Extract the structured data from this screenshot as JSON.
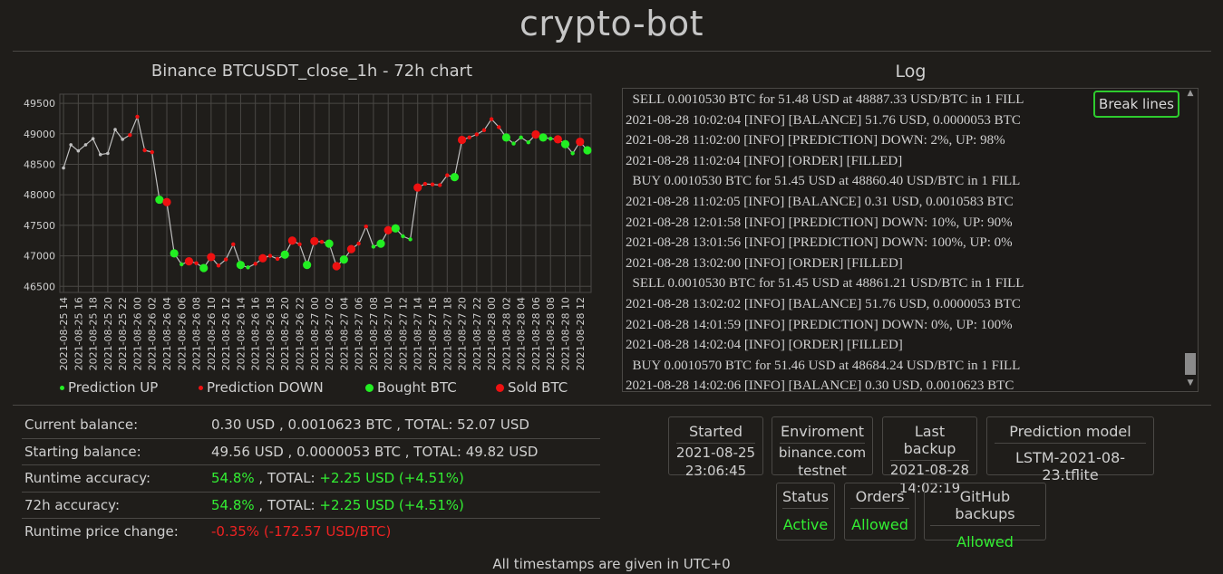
{
  "app": {
    "title": "crypto-bot",
    "footer": "All timestamps are given in UTC+0"
  },
  "chart_data": {
    "type": "line",
    "title": "Binance BTCUSDT_close_1h - 72h chart",
    "xlabel": "",
    "ylabel": "",
    "ylim": [
      46400,
      49650
    ],
    "yticks": [
      46500,
      47000,
      47500,
      48000,
      48500,
      49000,
      49500
    ],
    "grid": true,
    "legend_position": "bottom",
    "x": [
      "2021-08-25 14",
      "2021-08-25 15",
      "2021-08-25 16",
      "2021-08-25 17",
      "2021-08-25 18",
      "2021-08-25 19",
      "2021-08-25 20",
      "2021-08-25 21",
      "2021-08-25 22",
      "2021-08-25 23",
      "2021-08-26 00",
      "2021-08-26 01",
      "2021-08-26 02",
      "2021-08-26 03",
      "2021-08-26 04",
      "2021-08-26 05",
      "2021-08-26 06",
      "2021-08-26 07",
      "2021-08-26 08",
      "2021-08-26 09",
      "2021-08-26 10",
      "2021-08-26 11",
      "2021-08-26 12",
      "2021-08-26 13",
      "2021-08-26 14",
      "2021-08-26 15",
      "2021-08-26 16",
      "2021-08-26 17",
      "2021-08-26 18",
      "2021-08-26 19",
      "2021-08-26 20",
      "2021-08-26 21",
      "2021-08-26 22",
      "2021-08-26 23",
      "2021-08-27 00",
      "2021-08-27 01",
      "2021-08-27 02",
      "2021-08-27 03",
      "2021-08-27 04",
      "2021-08-27 05",
      "2021-08-27 06",
      "2021-08-27 07",
      "2021-08-27 08",
      "2021-08-27 09",
      "2021-08-27 10",
      "2021-08-27 11",
      "2021-08-27 12",
      "2021-08-27 13",
      "2021-08-27 14",
      "2021-08-27 15",
      "2021-08-27 16",
      "2021-08-27 17",
      "2021-08-27 18",
      "2021-08-27 19",
      "2021-08-27 20",
      "2021-08-27 21",
      "2021-08-27 22",
      "2021-08-27 23",
      "2021-08-28 00",
      "2021-08-28 01",
      "2021-08-28 02",
      "2021-08-28 03",
      "2021-08-28 04",
      "2021-08-28 05",
      "2021-08-28 06",
      "2021-08-28 07",
      "2021-08-28 08",
      "2021-08-28 09",
      "2021-08-28 10",
      "2021-08-28 11",
      "2021-08-28 12",
      "2021-08-28 13"
    ],
    "xtick_labels": [
      "2021-08-25 14",
      "2021-08-25 16",
      "2021-08-25 18",
      "2021-08-25 20",
      "2021-08-25 22",
      "2021-08-26 00",
      "2021-08-26 02",
      "2021-08-26 04",
      "2021-08-26 06",
      "2021-08-26 08",
      "2021-08-26 10",
      "2021-08-26 12",
      "2021-08-26 14",
      "2021-08-26 16",
      "2021-08-26 18",
      "2021-08-26 20",
      "2021-08-26 22",
      "2021-08-27 00",
      "2021-08-27 02",
      "2021-08-27 04",
      "2021-08-27 06",
      "2021-08-27 08",
      "2021-08-27 10",
      "2021-08-27 12",
      "2021-08-27 14",
      "2021-08-27 16",
      "2021-08-27 18",
      "2021-08-27 20",
      "2021-08-27 22",
      "2021-08-28 00",
      "2021-08-28 02",
      "2021-08-28 04",
      "2021-08-28 06",
      "2021-08-28 08",
      "2021-08-28 10",
      "2021-08-28 12"
    ],
    "values": [
      48440,
      48820,
      48720,
      48820,
      48920,
      48660,
      48680,
      49070,
      48910,
      48980,
      49280,
      48730,
      48700,
      47920,
      47880,
      47040,
      46860,
      46910,
      46880,
      46800,
      46980,
      46840,
      46940,
      47190,
      46850,
      46810,
      46870,
      46960,
      47000,
      46950,
      47020,
      47250,
      47190,
      46850,
      47240,
      47230,
      47200,
      46830,
      46940,
      47110,
      47200,
      47480,
      47150,
      47200,
      47420,
      47450,
      47320,
      47270,
      48120,
      48180,
      48170,
      48160,
      48320,
      48290,
      48900,
      48940,
      48990,
      49060,
      49240,
      49110,
      48940,
      48840,
      48940,
      48860,
      48990,
      48940,
      48920,
      48910,
      48830,
      48680,
      48870,
      48730
    ],
    "markers": [
      {
        "i": 0,
        "type": "none"
      },
      {
        "i": 1,
        "type": "none"
      },
      {
        "i": 2,
        "type": "none"
      },
      {
        "i": 3,
        "type": "none"
      },
      {
        "i": 4,
        "type": "none"
      },
      {
        "i": 5,
        "type": "none"
      },
      {
        "i": 6,
        "type": "none"
      },
      {
        "i": 7,
        "type": "none"
      },
      {
        "i": 8,
        "type": "none"
      },
      {
        "i": 9,
        "type": "pred_down"
      },
      {
        "i": 10,
        "type": "pred_down"
      },
      {
        "i": 11,
        "type": "pred_down"
      },
      {
        "i": 12,
        "type": "pred_down"
      },
      {
        "i": 13,
        "type": "bought"
      },
      {
        "i": 14,
        "type": "sold"
      },
      {
        "i": 15,
        "type": "bought"
      },
      {
        "i": 16,
        "type": "pred_up"
      },
      {
        "i": 17,
        "type": "sold"
      },
      {
        "i": 18,
        "type": "pred_down"
      },
      {
        "i": 19,
        "type": "bought"
      },
      {
        "i": 20,
        "type": "sold"
      },
      {
        "i": 21,
        "type": "pred_down"
      },
      {
        "i": 22,
        "type": "pred_down"
      },
      {
        "i": 23,
        "type": "pred_down"
      },
      {
        "i": 24,
        "type": "bought"
      },
      {
        "i": 25,
        "type": "pred_up"
      },
      {
        "i": 26,
        "type": "pred_down"
      },
      {
        "i": 27,
        "type": "sold"
      },
      {
        "i": 28,
        "type": "pred_down"
      },
      {
        "i": 29,
        "type": "pred_down"
      },
      {
        "i": 30,
        "type": "bought"
      },
      {
        "i": 31,
        "type": "sold"
      },
      {
        "i": 32,
        "type": "pred_down"
      },
      {
        "i": 33,
        "type": "bought"
      },
      {
        "i": 34,
        "type": "sold"
      },
      {
        "i": 35,
        "type": "pred_down"
      },
      {
        "i": 36,
        "type": "bought"
      },
      {
        "i": 37,
        "type": "sold"
      },
      {
        "i": 38,
        "type": "bought"
      },
      {
        "i": 39,
        "type": "sold"
      },
      {
        "i": 40,
        "type": "pred_down"
      },
      {
        "i": 41,
        "type": "pred_down"
      },
      {
        "i": 42,
        "type": "pred_up"
      },
      {
        "i": 43,
        "type": "bought"
      },
      {
        "i": 44,
        "type": "sold"
      },
      {
        "i": 45,
        "type": "bought"
      },
      {
        "i": 46,
        "type": "pred_up"
      },
      {
        "i": 47,
        "type": "pred_up"
      },
      {
        "i": 48,
        "type": "sold"
      },
      {
        "i": 49,
        "type": "pred_down"
      },
      {
        "i": 50,
        "type": "pred_down"
      },
      {
        "i": 51,
        "type": "pred_down"
      },
      {
        "i": 52,
        "type": "pred_down"
      },
      {
        "i": 53,
        "type": "bought"
      },
      {
        "i": 54,
        "type": "sold"
      },
      {
        "i": 55,
        "type": "pred_down"
      },
      {
        "i": 56,
        "type": "pred_down"
      },
      {
        "i": 57,
        "type": "pred_down"
      },
      {
        "i": 58,
        "type": "pred_down"
      },
      {
        "i": 59,
        "type": "pred_down"
      },
      {
        "i": 60,
        "type": "bought"
      },
      {
        "i": 61,
        "type": "pred_up"
      },
      {
        "i": 62,
        "type": "pred_up"
      },
      {
        "i": 63,
        "type": "pred_up"
      },
      {
        "i": 64,
        "type": "sold"
      },
      {
        "i": 65,
        "type": "bought"
      },
      {
        "i": 66,
        "type": "pred_up"
      },
      {
        "i": 67,
        "type": "sold"
      },
      {
        "i": 68,
        "type": "bought"
      },
      {
        "i": 69,
        "type": "pred_up"
      },
      {
        "i": 70,
        "type": "sold"
      },
      {
        "i": 71,
        "type": "bought"
      }
    ],
    "legend": [
      {
        "label": "Prediction UP",
        "type": "pred_up",
        "color": "#22ee22"
      },
      {
        "label": "Prediction DOWN",
        "type": "pred_down",
        "color": "#ee1111"
      },
      {
        "label": "Bought BTC",
        "type": "bought",
        "color": "#22ee22"
      },
      {
        "label": "Sold BTC",
        "type": "sold",
        "color": "#ee1111"
      }
    ],
    "line_color": "#bfbfbf"
  },
  "log": {
    "title": "Log",
    "break_lines_label": "Break lines",
    "lines": [
      "  SELL 0.0010530 BTC for 51.48 USD at 48887.33 USD/BTC in 1 FILL",
      "2021-08-28 10:02:04 [INFO] [BALANCE] 51.76 USD, 0.0000053 BTC",
      "2021-08-28 11:02:00 [INFO] [PREDICTION] DOWN: 2%, UP: 98%",
      "2021-08-28 11:02:04 [INFO] [ORDER] [FILLED]",
      "  BUY 0.0010530 BTC for 51.45 USD at 48860.40 USD/BTC in 1 FILL",
      "2021-08-28 11:02:05 [INFO] [BALANCE] 0.31 USD, 0.0010583 BTC",
      "2021-08-28 12:01:58 [INFO] [PREDICTION] DOWN: 10%, UP: 90%",
      "2021-08-28 13:01:56 [INFO] [PREDICTION] DOWN: 100%, UP: 0%",
      "2021-08-28 13:02:00 [INFO] [ORDER] [FILLED]",
      "  SELL 0.0010530 BTC for 51.45 USD at 48861.21 USD/BTC in 1 FILL",
      "2021-08-28 13:02:02 [INFO] [BALANCE] 51.76 USD, 0.0000053 BTC",
      "2021-08-28 14:01:59 [INFO] [PREDICTION] DOWN: 0%, UP: 100%",
      "2021-08-28 14:02:04 [INFO] [ORDER] [FILLED]",
      "  BUY 0.0010570 BTC for 51.46 USD at 48684.24 USD/BTC in 1 FILL",
      "2021-08-28 14:02:06 [INFO] [BALANCE] 0.30 USD, 0.0010623 BTC"
    ],
    "scrollbar": {
      "up_icon": "▲",
      "down_icon": "▼"
    }
  },
  "stats": {
    "current_balance": {
      "label": "Current balance:",
      "value": "0.30 USD , 0.0010623 BTC , TOTAL: 52.07 USD"
    },
    "starting_balance": {
      "label": "Starting balance:",
      "value": "49.56 USD , 0.0000053 BTC , TOTAL: 49.82 USD"
    },
    "runtime_accuracy": {
      "label": "Runtime accuracy:",
      "pct": "54.8%",
      "mid": " , TOTAL: ",
      "total": "+2.25 USD (+4.51%)"
    },
    "h72_accuracy": {
      "label": "72h accuracy:",
      "pct": "54.8%",
      "mid": " , TOTAL: ",
      "total": "+2.25 USD (+4.51%)"
    },
    "runtime_price_change": {
      "label": "Runtime price change:",
      "value": "-0.35% (-172.57 USD/BTC)"
    }
  },
  "cards": {
    "started": {
      "head": "Started",
      "line1": "2021-08-25",
      "line2": "23:06:45"
    },
    "environment": {
      "head": "Enviroment",
      "line1": "binance.com",
      "line2": "testnet"
    },
    "last_backup": {
      "head": "Last backup",
      "line1": "2021-08-28",
      "line2": "14:02:19"
    },
    "prediction_model": {
      "head": "Prediction model",
      "line1": "LSTM-2021-08-23.tflite"
    },
    "status": {
      "head": "Status",
      "value": "Active"
    },
    "orders": {
      "head": "Orders",
      "value": "Allowed"
    },
    "github_backups": {
      "head": "GitHub backups",
      "value": "Allowed"
    }
  },
  "colors": {
    "positive": "#33ee33",
    "negative": "#ee2222",
    "accent_border": "#2ecc2e"
  }
}
